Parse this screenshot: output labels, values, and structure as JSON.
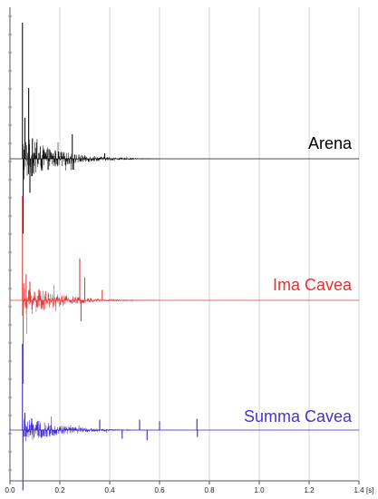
{
  "chart_data": {
    "type": "line",
    "title": "",
    "xlabel": "",
    "ylabel": "",
    "x_unit": "[s]",
    "xlim": [
      0,
      1.4
    ],
    "x_ticks": [
      0.0,
      0.2,
      0.4,
      0.6,
      0.8,
      1.0,
      1.2,
      1.4
    ],
    "x_tick_labels": [
      "0.0",
      "0.2",
      "0.4",
      "0.6",
      "0.8",
      "1.0",
      "1.2",
      "1.4"
    ],
    "y_ticks_labeled": false,
    "grid": "vertical",
    "colors": {
      "grid": "#d6d6d6",
      "axis": "#555555"
    },
    "series": [
      {
        "name": "Arena",
        "color": "#111111",
        "label_color": "#000000",
        "peaks": [
          {
            "t": 0.05,
            "v": 1.0
          },
          {
            "t": 0.053,
            "v": -0.55
          },
          {
            "t": 0.06,
            "v": 0.3
          },
          {
            "t": 0.075,
            "v": 0.52
          },
          {
            "t": 0.08,
            "v": -0.25
          },
          {
            "t": 0.09,
            "v": 0.15
          },
          {
            "t": 0.25,
            "v": 0.18
          },
          {
            "t": 0.252,
            "v": -0.08
          },
          {
            "t": 0.38,
            "v": 0.04
          }
        ],
        "decay_end": 0.6
      },
      {
        "name": "Ima Cavea",
        "color": "#e53a3a",
        "label_color": "#e0322e",
        "peaks": [
          {
            "t": 0.05,
            "v": 1.0
          },
          {
            "t": 0.053,
            "v": -0.8
          },
          {
            "t": 0.065,
            "v": 0.25
          },
          {
            "t": 0.08,
            "v": 0.18
          },
          {
            "t": 0.28,
            "v": 0.4
          },
          {
            "t": 0.285,
            "v": -0.2
          },
          {
            "t": 0.3,
            "v": 0.22
          },
          {
            "t": 0.37,
            "v": 0.1
          }
        ],
        "decay_end": 0.6
      },
      {
        "name": "Summa Cavea",
        "color": "#3b24d4",
        "label_color": "#4a2fd0",
        "peaks": [
          {
            "t": 0.05,
            "v": 1.0
          },
          {
            "t": 0.052,
            "v": -0.7
          },
          {
            "t": 0.06,
            "v": 0.2
          },
          {
            "t": 0.36,
            "v": 0.12
          },
          {
            "t": 0.45,
            "v": -0.1
          },
          {
            "t": 0.52,
            "v": 0.12
          },
          {
            "t": 0.55,
            "v": -0.12
          },
          {
            "t": 0.6,
            "v": 0.1
          },
          {
            "t": 0.75,
            "v": 0.13
          },
          {
            "t": 0.752,
            "v": -0.08
          }
        ],
        "decay_end": 0.76
      }
    ]
  }
}
